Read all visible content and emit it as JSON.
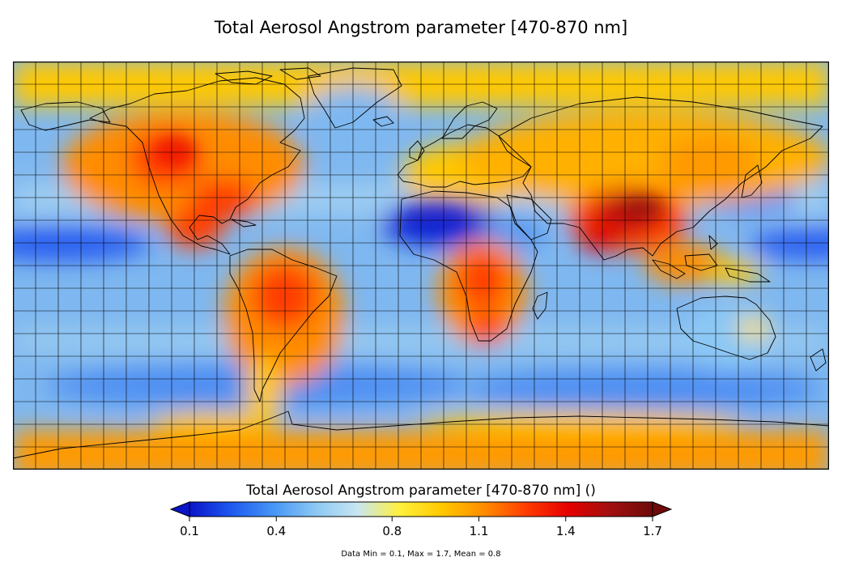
{
  "title": "Total Aerosol Angstrom parameter [470-870 nm]",
  "colorbar": {
    "title": "Total Aerosol Angstrom parameter [470-870 nm] ()",
    "ticks": [
      "0.1",
      "0.4",
      "0.8",
      "1.1",
      "1.4",
      "1.7"
    ],
    "tick_values": [
      0.1,
      0.4,
      0.8,
      1.1,
      1.4,
      1.7
    ],
    "min": 0.1,
    "max": 1.7,
    "extend": "both",
    "colors": [
      "#0a14c8",
      "#1e5af0",
      "#4696f5",
      "#8cc8f5",
      "#c8e6f0",
      "#fff03c",
      "#ffc800",
      "#ff8c00",
      "#ff3c00",
      "#e60000",
      "#a01010",
      "#6e0a0a"
    ]
  },
  "stats": "Data Min = 0.1, Max = 1.7, Mean = 0.8",
  "map": {
    "background_color": "#7fb8f0",
    "grid": true,
    "grid_lon_step_deg": 10,
    "grid_lat_step_deg": 10,
    "projection": "equirectangular"
  }
}
